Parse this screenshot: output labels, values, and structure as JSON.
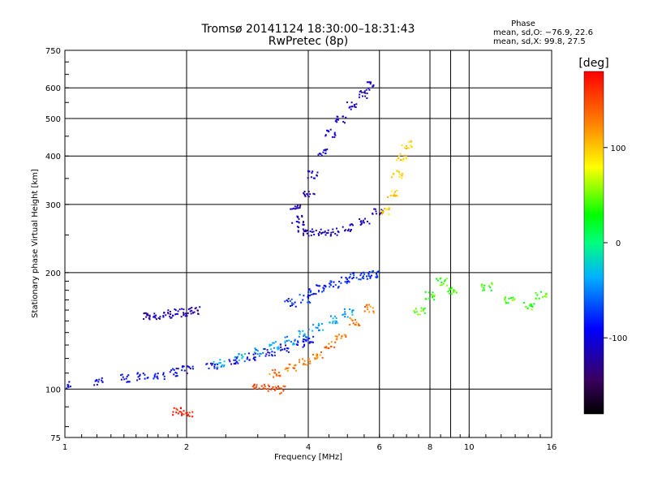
{
  "chart_data": {
    "type": "scatter",
    "title": "Tromsø 20141124 18:30:00–18:31:43",
    "subtitle": "RwPretec (8p)",
    "xlabel": "Frequency [MHz]",
    "ylabel": "Stationary phase Virtual Height [km]",
    "x_scale": "log",
    "y_scale": "log",
    "xlim": [
      1,
      16
    ],
    "ylim": [
      75,
      750
    ],
    "x_ticks": [
      1,
      2,
      4,
      6,
      8,
      10,
      16
    ],
    "y_ticks": [
      75,
      100,
      200,
      300,
      400,
      500,
      600,
      750
    ],
    "grid": true,
    "colorbar": {
      "unit": "[deg]",
      "ticks": [
        100,
        0,
        -100
      ],
      "range": [
        -180,
        180
      ]
    },
    "stats": {
      "heading": "Phase",
      "line1": "mean, sd,O: −76.9, 22.6",
      "line2": "mean, sd,X:  99.8, 27.5"
    },
    "traces": [
      {
        "x": [
          1.0,
          1.2,
          1.4,
          1.55,
          1.7,
          1.85,
          2.0,
          2.3,
          2.6,
          2.9,
          3.2,
          3.5,
          3.8,
          4.0
        ],
        "y": [
          103,
          105,
          107,
          108,
          109,
          111,
          113,
          116,
          119,
          122,
          125,
          128,
          132,
          135
        ],
        "phase": -95
      },
      {
        "x": [
          1.6,
          1.7,
          1.8,
          1.9,
          2.0,
          2.1
        ],
        "y": [
          155,
          156,
          157,
          158,
          159,
          160
        ],
        "phase": -120
      },
      {
        "x": [
          2.4,
          2.7,
          3.0,
          3.3,
          3.6,
          3.9,
          4.2,
          4.6,
          5.0
        ],
        "y": [
          117,
          121,
          125,
          130,
          134,
          140,
          145,
          152,
          158
        ],
        "phase": -40
      },
      {
        "x": [
          3.3,
          3.6,
          3.9,
          4.2,
          4.5,
          4.8,
          5.2,
          5.6
        ],
        "y": [
          110,
          114,
          118,
          123,
          130,
          138,
          150,
          162
        ],
        "phase": 130
      },
      {
        "x": [
          3.6,
          3.9,
          4.1,
          4.3,
          4.6,
          4.9,
          5.2,
          5.5,
          5.8
        ],
        "y": [
          168,
          172,
          178,
          183,
          188,
          193,
          196,
          198,
          199
        ],
        "phase": -80
      },
      {
        "x": [
          3.7,
          3.75,
          3.85,
          4.0,
          4.3,
          4.6,
          5.0,
          5.5,
          5.9
        ],
        "y": [
          300,
          275,
          262,
          255,
          254,
          256,
          262,
          272,
          290
        ],
        "phase": -115
      },
      {
        "x": [
          4.0,
          4.1,
          4.3,
          4.5,
          4.8,
          5.1,
          5.4,
          5.7
        ],
        "y": [
          320,
          360,
          410,
          460,
          500,
          540,
          580,
          610
        ],
        "phase": -110
      },
      {
        "x": [
          6.2,
          6.4,
          6.6,
          6.8,
          7.0
        ],
        "y": [
          290,
          320,
          360,
          400,
          430
        ],
        "phase": 95
      },
      {
        "x": [
          3.0,
          3.2,
          3.4
        ],
        "y": [
          101,
          101,
          100
        ],
        "phase": 150
      },
      {
        "x": [
          1.9,
          2.0
        ],
        "y": [
          88,
          87
        ],
        "phase": 170
      },
      {
        "x": [
          7.5,
          8.0,
          8.5,
          9.0,
          11.0,
          12.5,
          14.0,
          15.0
        ],
        "y": [
          160,
          175,
          190,
          180,
          185,
          170,
          165,
          175
        ],
        "phase": 40
      }
    ]
  }
}
